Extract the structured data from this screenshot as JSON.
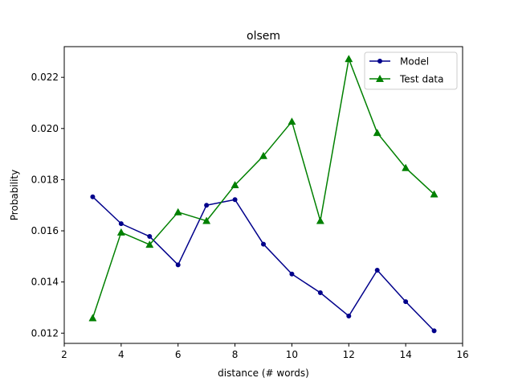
{
  "chart_data": {
    "type": "line",
    "title": "olsem",
    "xlabel": "distance (# words)",
    "ylabel": "Probability",
    "xlim": [
      2,
      16
    ],
    "ylim": [
      0.0116,
      0.0232
    ],
    "xticks": [
      2,
      4,
      6,
      8,
      10,
      12,
      14,
      16
    ],
    "yticks": [
      0.012,
      0.014,
      0.016,
      0.018,
      0.02,
      0.022
    ],
    "xtick_labels": [
      "2",
      "4",
      "6",
      "8",
      "10",
      "12",
      "14",
      "16"
    ],
    "ytick_labels": [
      "0.012",
      "0.014",
      "0.016",
      "0.018",
      "0.020",
      "0.022"
    ],
    "grid": false,
    "legend_position": "top-right",
    "x": [
      3,
      4,
      5,
      6,
      7,
      8,
      9,
      10,
      11,
      12,
      13,
      14,
      15
    ],
    "series": [
      {
        "name": "Model",
        "color": "#00008b",
        "marker": "circle",
        "values": [
          0.01733,
          0.01628,
          0.01578,
          0.01467,
          0.017,
          0.01722,
          0.01548,
          0.01431,
          0.01358,
          0.01267,
          0.01446,
          0.01323,
          0.01209
        ]
      },
      {
        "name": "Test data",
        "color": "#008000",
        "marker": "triangle",
        "values": [
          0.01259,
          0.01594,
          0.01546,
          0.01673,
          0.01639,
          0.01779,
          0.01893,
          0.02027,
          0.01639,
          0.02272,
          0.01983,
          0.01846,
          0.01743
        ]
      }
    ]
  }
}
